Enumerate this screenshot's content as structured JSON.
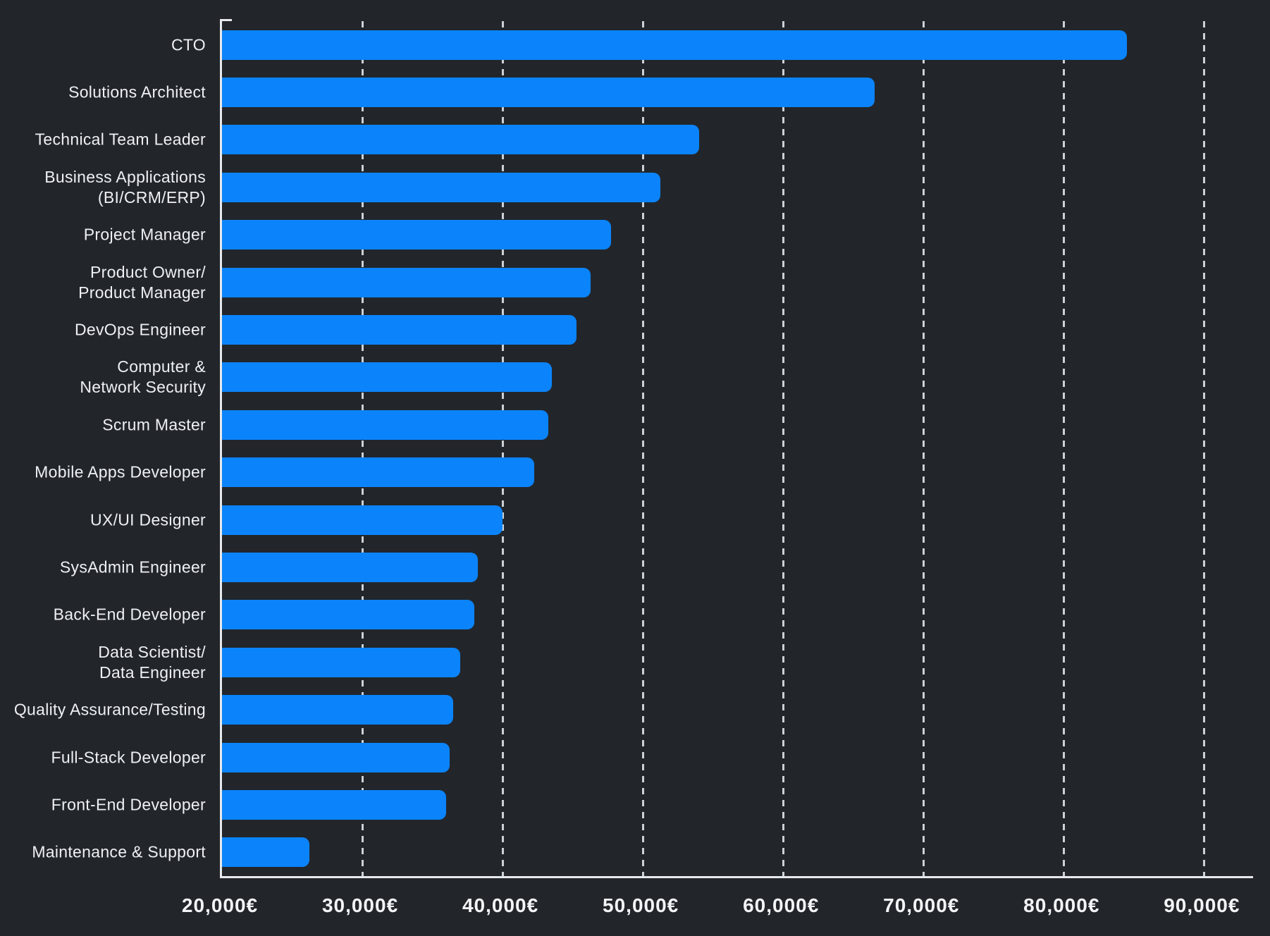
{
  "chart_data": {
    "type": "bar",
    "orientation": "horizontal",
    "title": "",
    "xlabel": "",
    "ylabel": "",
    "currency_suffix": "€",
    "categories": [
      "CTO",
      "Solutions Architect",
      "Technical Team Leader",
      "Business Applications (BI/CRM/ERP)",
      "Project Manager",
      "Product Owner/ Product Manager",
      "DevOps Engineer",
      "Computer & Network Security",
      "Scrum Master",
      "Mobile Apps Developer",
      "UX/UI Designer",
      "SysAdmin Engineer",
      "Back-End Developer",
      "Data Scientist/ Data Engineer",
      "Quality Assurance/Testing",
      "Full-Stack Developer",
      "Front-End Developer",
      "Maintenance & Support"
    ],
    "category_lines": [
      [
        "CTO"
      ],
      [
        "Solutions Architect"
      ],
      [
        "Technical Team Leader"
      ],
      [
        "Business Applications",
        "(BI/CRM/ERP)"
      ],
      [
        "Project Manager"
      ],
      [
        "Product Owner/",
        "Product Manager"
      ],
      [
        "DevOps Engineer"
      ],
      [
        "Computer &",
        "Network Security"
      ],
      [
        "Scrum Master"
      ],
      [
        "Mobile Apps Developer"
      ],
      [
        "UX/UI Designer"
      ],
      [
        "SysAdmin Engineer"
      ],
      [
        "Back-End Developer"
      ],
      [
        "Data Scientist/",
        "Data Engineer"
      ],
      [
        "Quality Assurance/Testing"
      ],
      [
        "Full-Stack Developer"
      ],
      [
        "Front-End Developer"
      ],
      [
        "Maintenance & Support"
      ]
    ],
    "values": [
      84500,
      66500,
      54000,
      51250,
      47750,
      46250,
      45250,
      43500,
      43250,
      42250,
      40000,
      38250,
      38000,
      37000,
      36500,
      36250,
      36000,
      26250
    ],
    "x_ticks": [
      "20,000€",
      "30,000€",
      "40,000€",
      "50,000€",
      "60,000€",
      "70,000€",
      "80,000€",
      "90,000€"
    ],
    "x_tick_values": [
      20000,
      30000,
      40000,
      50000,
      60000,
      70000,
      80000,
      90000
    ],
    "xlim": [
      20000,
      93500
    ],
    "grid": "vertical-dashed",
    "gridline_values": [
      30000,
      40000,
      50000,
      60000,
      70000,
      80000,
      90000
    ],
    "legend": "none",
    "colors": {
      "bar": "#0b84fb",
      "background": "#22262b",
      "axis": "#e7e9ec",
      "gridline": "#dbe0e4",
      "text": "#eef0f3"
    }
  }
}
